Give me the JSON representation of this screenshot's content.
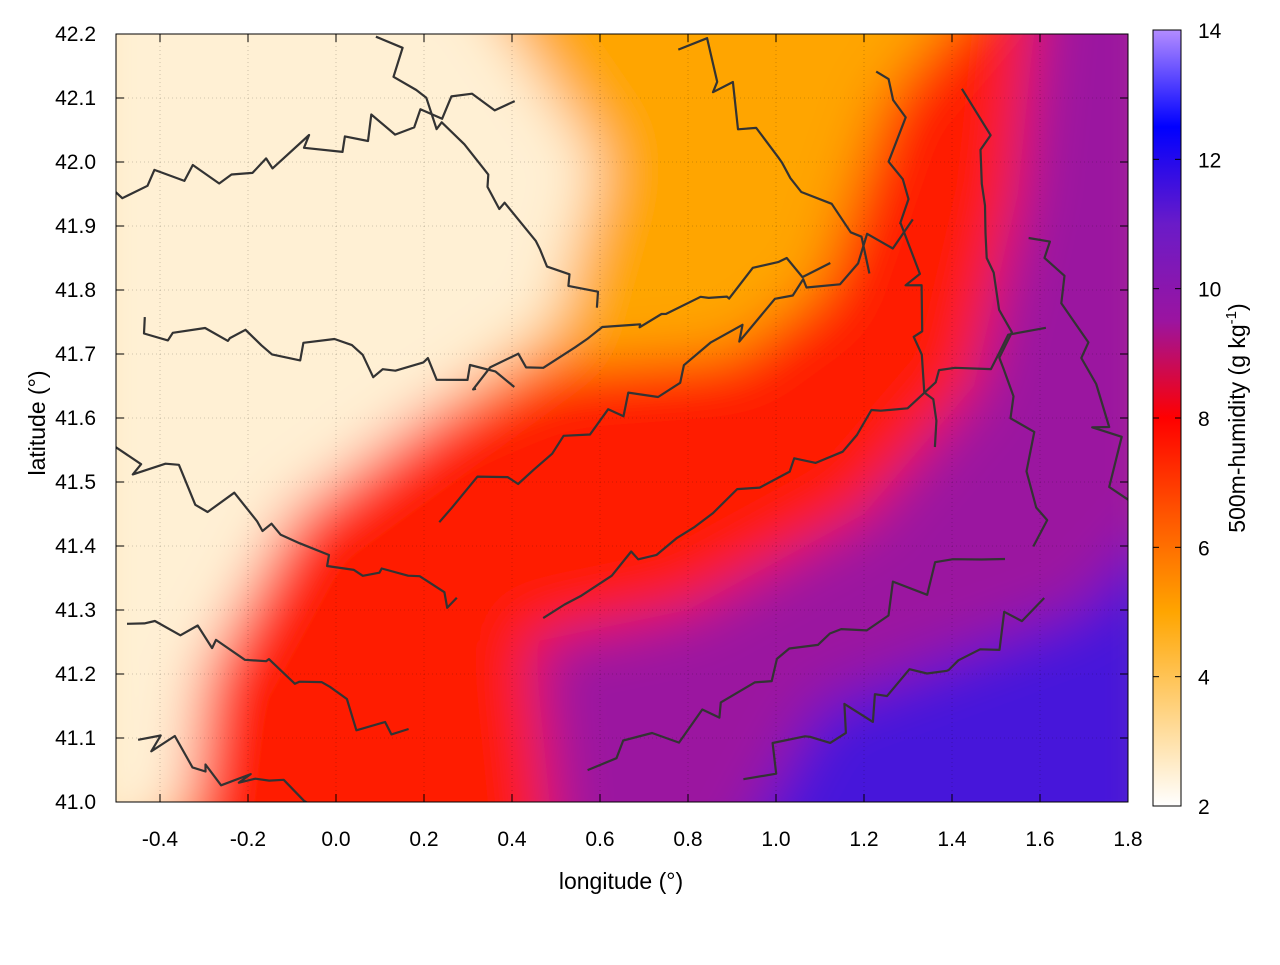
{
  "chart_data": {
    "type": "heatmap",
    "xlabel": "longitude (°)",
    "ylabel": "latitude (°)",
    "colorbar_label": "500m-humidity (g kg",
    "colorbar_unit_exp": "-1",
    "colorbar_label_close": ")",
    "xlim": [
      -0.5,
      1.8
    ],
    "ylim": [
      41.0,
      42.2
    ],
    "clim": [
      2,
      14
    ],
    "x_ticks": [
      "-0.4",
      "-0.2",
      "0.0",
      "0.2",
      "0.4",
      "0.6",
      "0.8",
      "1.0",
      "1.2",
      "1.4",
      "1.6",
      "1.8"
    ],
    "y_ticks": [
      "41.0",
      "41.1",
      "41.2",
      "41.3",
      "41.4",
      "41.5",
      "41.6",
      "41.7",
      "41.8",
      "41.9",
      "42.0",
      "42.1",
      "42.2"
    ],
    "colorbar_ticks": [
      "2",
      "4",
      "6",
      "8",
      "10",
      "12",
      "14"
    ],
    "grid": true,
    "colormap": [
      "#ffffff",
      "#ffd27f",
      "#ffa500",
      "#ff5500",
      "#ff0000",
      "#9b14a0",
      "#6a1bc8",
      "#0000ff",
      "#b38cff"
    ],
    "field_features": [
      {
        "name": "dry-northwest-interior",
        "value": 2.5
      },
      {
        "name": "orange-plateau",
        "value": 5.0
      },
      {
        "name": "red-central-band",
        "value": 7.5
      },
      {
        "name": "purple-coastal-transition",
        "value": 9.5
      },
      {
        "name": "blue-sea",
        "value": 11.5
      }
    ]
  }
}
